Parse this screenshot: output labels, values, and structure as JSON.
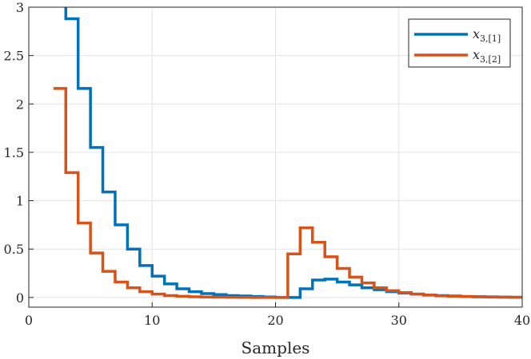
{
  "chart_data": {
    "type": "line",
    "step": true,
    "xlabel": "Samples",
    "ylabel": "",
    "xlim": [
      0,
      40
    ],
    "ylim": [
      -0.1,
      3
    ],
    "xticks": [
      "0",
      "10",
      "20",
      "30",
      "40"
    ],
    "yticks": [
      "0",
      "0.5",
      "1",
      "1.5",
      "2",
      "2.5",
      "3"
    ],
    "xtick_values": [
      0,
      10,
      20,
      30,
      40
    ],
    "ytick_values": [
      0,
      0.5,
      1,
      1.5,
      2,
      2.5,
      3
    ],
    "grid": true,
    "legend_position": "top-right",
    "series": [
      {
        "name": "x3,[1]",
        "legend_main": "x",
        "legend_sub": "3,[1]",
        "color": "#0072BD",
        "x": [
          2,
          3,
          4,
          5,
          6,
          7,
          8,
          9,
          10,
          11,
          12,
          13,
          14,
          15,
          16,
          17,
          18,
          19,
          20,
          21,
          22,
          23,
          24,
          25,
          26,
          27,
          28,
          29,
          30,
          31,
          32,
          33,
          34,
          35,
          36,
          37,
          38,
          39,
          40
        ],
        "y": [
          3.2,
          2.88,
          2.16,
          1.55,
          1.09,
          0.75,
          0.5,
          0.33,
          0.22,
          0.14,
          0.09,
          0.06,
          0.04,
          0.03,
          0.02,
          0.015,
          0.01,
          0.005,
          0.0,
          0.0,
          0.09,
          0.18,
          0.19,
          0.16,
          0.13,
          0.1,
          0.08,
          0.06,
          0.045,
          0.035,
          0.025,
          0.02,
          0.015,
          0.01,
          0.008,
          0.006,
          0.004,
          0.002,
          0.002
        ]
      },
      {
        "name": "x3,[2]",
        "legend_main": "x",
        "legend_sub": "3,[2]",
        "color": "#D95319",
        "x": [
          2,
          3,
          4,
          5,
          6,
          7,
          8,
          9,
          10,
          11,
          12,
          13,
          14,
          15,
          16,
          17,
          18,
          19,
          20,
          21,
          22,
          23,
          24,
          25,
          26,
          27,
          28,
          29,
          30,
          31,
          32,
          33,
          34,
          35,
          36,
          37,
          38,
          39,
          40
        ],
        "y": [
          2.16,
          1.29,
          0.77,
          0.46,
          0.27,
          0.16,
          0.1,
          0.06,
          0.035,
          0.02,
          0.012,
          0.007,
          0.004,
          0.003,
          0.002,
          0.001,
          0.0,
          0.0,
          0.0,
          0.45,
          0.72,
          0.57,
          0.42,
          0.3,
          0.21,
          0.15,
          0.1,
          0.07,
          0.05,
          0.035,
          0.025,
          0.018,
          0.012,
          0.009,
          0.006,
          0.004,
          0.003,
          0.002,
          0.001
        ]
      }
    ]
  }
}
